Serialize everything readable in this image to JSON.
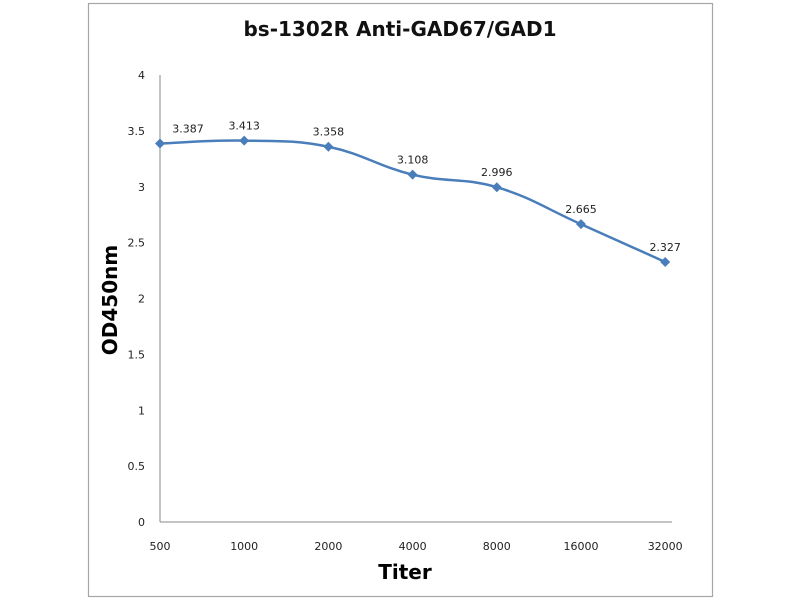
{
  "chart_data": {
    "type": "line",
    "title": "bs-1302R  Anti-GAD67/GAD1",
    "xlabel": "Titer",
    "ylabel": "OD450nm",
    "categories": [
      "500",
      "1000",
      "2000",
      "4000",
      "8000",
      "16000",
      "32000"
    ],
    "series": [
      {
        "name": "OD450nm",
        "values": [
          3.387,
          3.413,
          3.358,
          3.108,
          2.996,
          2.665,
          2.327
        ],
        "labels": [
          "3.387",
          "3.413",
          "3.358",
          "3.108",
          "2.996",
          "2.665",
          "2.327"
        ],
        "color": "#4a7ebb"
      }
    ],
    "ylim": [
      0,
      4
    ],
    "yticks": [
      "0",
      "0.5",
      "1",
      "1.5",
      "2",
      "2.5",
      "3",
      "3.5",
      "4"
    ],
    "grid": false,
    "legend": "none"
  }
}
